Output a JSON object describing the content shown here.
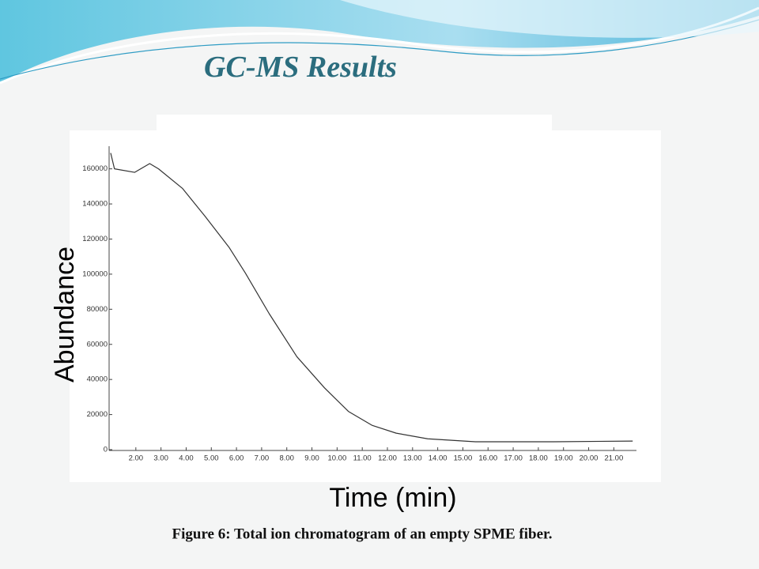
{
  "slide": {
    "title": "GC-MS Results",
    "caption": "Figure 6: Total ion chromatogram  of an empty SPME fiber."
  },
  "chart_data": {
    "type": "line",
    "x_label": "Time (min)",
    "y_label": "Abundance",
    "x": [
      1.0,
      1.15,
      1.95,
      2.55,
      2.9,
      3.85,
      4.75,
      5.7,
      6.35,
      7.3,
      8.4,
      9.5,
      10.45,
      11.4,
      12.35,
      13.6,
      15.5,
      18.6,
      21.75
    ],
    "values": [
      169000,
      160000,
      158000,
      163000,
      160000,
      148900,
      133000,
      115400,
      100700,
      77500,
      53000,
      35200,
      21800,
      13800,
      9400,
      6200,
      4500,
      4500,
      4900
    ],
    "color": "#333333",
    "xlim": [
      1.0,
      21.9
    ],
    "ylim": [
      0,
      172000
    ],
    "xticks": [
      {
        "value": 2,
        "label": "2.00"
      },
      {
        "value": 3,
        "label": "3.00"
      },
      {
        "value": 4,
        "label": "4.00"
      },
      {
        "value": 5,
        "label": "5.00"
      },
      {
        "value": 6,
        "label": "6.00"
      },
      {
        "value": 7,
        "label": "7.00"
      },
      {
        "value": 8,
        "label": "8.00"
      },
      {
        "value": 9,
        "label": "9.00"
      },
      {
        "value": 10,
        "label": "10.00"
      },
      {
        "value": 11,
        "label": "11.00"
      },
      {
        "value": 12,
        "label": "12.00"
      },
      {
        "value": 13,
        "label": "13.00"
      },
      {
        "value": 14,
        "label": "14.00"
      },
      {
        "value": 15,
        "label": "15.00"
      },
      {
        "value": 16,
        "label": "16.00"
      },
      {
        "value": 17,
        "label": "17.00"
      },
      {
        "value": 18,
        "label": "18.00"
      },
      {
        "value": 19,
        "label": "19.00"
      },
      {
        "value": 20,
        "label": "20.00"
      },
      {
        "value": 21,
        "label": "21.00"
      }
    ],
    "yticks": [
      0,
      20000,
      40000,
      60000,
      80000,
      100000,
      120000,
      140000,
      160000
    ]
  }
}
